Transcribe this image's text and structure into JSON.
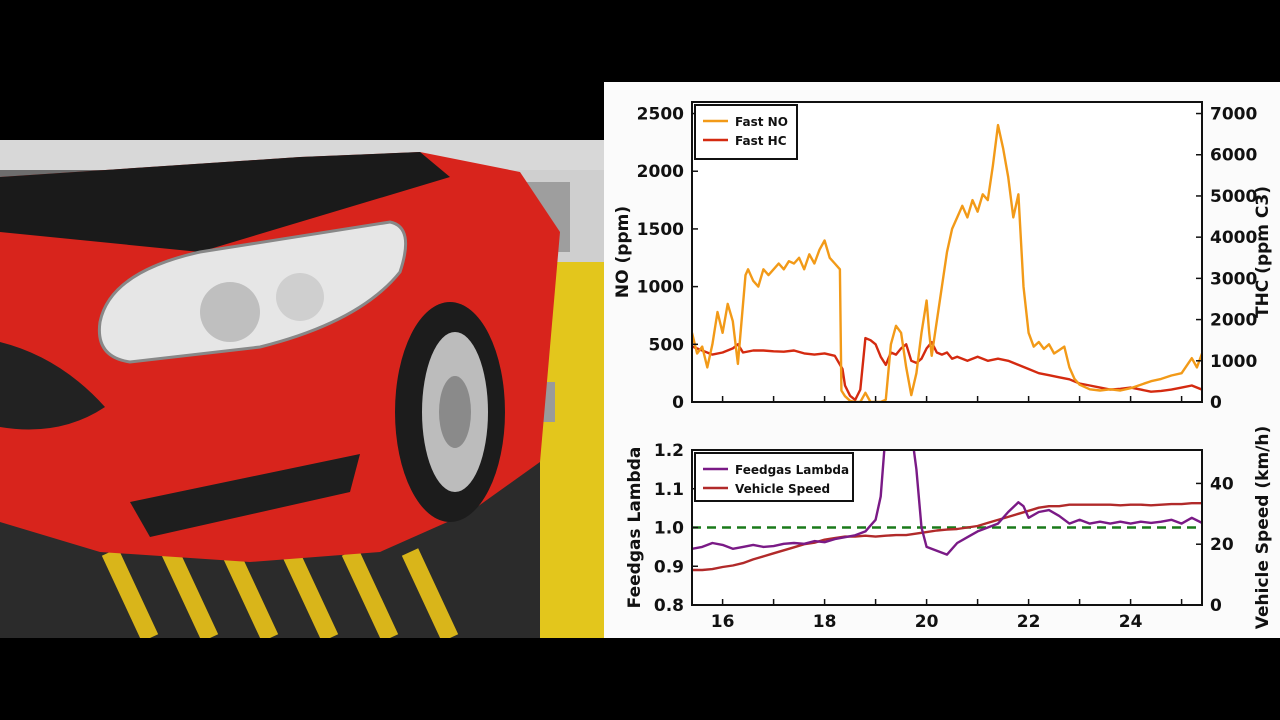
{
  "chart_data": [
    {
      "type": "line",
      "x_range": [
        15.4,
        25.4
      ],
      "y_left": {
        "label": "NO (ppm)",
        "range": [
          0,
          2600
        ],
        "ticks": [
          0,
          500,
          1000,
          1500,
          2000,
          2500
        ]
      },
      "y_right": {
        "label": "THC (ppm C3)",
        "range": [
          0,
          7280
        ],
        "ticks": [
          0,
          1000,
          2000,
          3000,
          4000,
          5000,
          6000,
          7000
        ]
      },
      "legend": {
        "placement": "top-left",
        "entries": [
          "Fast NO",
          "Fast HC"
        ]
      },
      "series": [
        {
          "name": "Fast NO",
          "axis": "left",
          "color": "#f29a18",
          "points": [
            [
              15.4,
              600
            ],
            [
              15.5,
              420
            ],
            [
              15.6,
              480
            ],
            [
              15.7,
              300
            ],
            [
              15.8,
              500
            ],
            [
              15.9,
              780
            ],
            [
              16.0,
              600
            ],
            [
              16.1,
              850
            ],
            [
              16.2,
              700
            ],
            [
              16.3,
              330
            ],
            [
              16.45,
              1100
            ],
            [
              16.5,
              1150
            ],
            [
              16.6,
              1050
            ],
            [
              16.7,
              1000
            ],
            [
              16.8,
              1150
            ],
            [
              16.9,
              1100
            ],
            [
              17.0,
              1150
            ],
            [
              17.1,
              1200
            ],
            [
              17.2,
              1150
            ],
            [
              17.3,
              1220
            ],
            [
              17.4,
              1200
            ],
            [
              17.5,
              1250
            ],
            [
              17.6,
              1150
            ],
            [
              17.7,
              1280
            ],
            [
              17.8,
              1200
            ],
            [
              17.9,
              1320
            ],
            [
              18.0,
              1400
            ],
            [
              18.1,
              1250
            ],
            [
              18.2,
              1200
            ],
            [
              18.3,
              1150
            ],
            [
              18.33,
              100
            ],
            [
              18.4,
              50
            ],
            [
              18.5,
              10
            ],
            [
              18.6,
              0
            ],
            [
              18.7,
              0
            ],
            [
              18.8,
              80
            ],
            [
              18.9,
              0
            ],
            [
              19.0,
              0
            ],
            [
              19.1,
              0
            ],
            [
              19.2,
              20
            ],
            [
              19.3,
              500
            ],
            [
              19.4,
              660
            ],
            [
              19.5,
              600
            ],
            [
              19.6,
              300
            ],
            [
              19.7,
              60
            ],
            [
              19.8,
              250
            ],
            [
              19.9,
              600
            ],
            [
              20.0,
              880
            ],
            [
              20.05,
              600
            ],
            [
              20.1,
              400
            ],
            [
              20.2,
              700
            ],
            [
              20.3,
              1000
            ],
            [
              20.4,
              1300
            ],
            [
              20.5,
              1500
            ],
            [
              20.6,
              1600
            ],
            [
              20.7,
              1700
            ],
            [
              20.8,
              1600
            ],
            [
              20.9,
              1750
            ],
            [
              21.0,
              1650
            ],
            [
              21.1,
              1800
            ],
            [
              21.2,
              1750
            ],
            [
              21.3,
              2050
            ],
            [
              21.4,
              2400
            ],
            [
              21.5,
              2200
            ],
            [
              21.6,
              1950
            ],
            [
              21.7,
              1600
            ],
            [
              21.8,
              1800
            ],
            [
              21.9,
              1000
            ],
            [
              22.0,
              600
            ],
            [
              22.1,
              480
            ],
            [
              22.2,
              520
            ],
            [
              22.3,
              460
            ],
            [
              22.4,
              500
            ],
            [
              22.5,
              420
            ],
            [
              22.6,
              450
            ],
            [
              22.7,
              480
            ],
            [
              22.8,
              300
            ],
            [
              22.9,
              200
            ],
            [
              23.0,
              150
            ],
            [
              23.2,
              110
            ],
            [
              23.4,
              100
            ],
            [
              23.6,
              110
            ],
            [
              23.8,
              100
            ],
            [
              24.0,
              120
            ],
            [
              24.2,
              150
            ],
            [
              24.4,
              180
            ],
            [
              24.6,
              200
            ],
            [
              24.8,
              230
            ],
            [
              25.0,
              250
            ],
            [
              25.2,
              380
            ],
            [
              25.3,
              300
            ],
            [
              25.4,
              420
            ]
          ]
        },
        {
          "name": "Fast HC",
          "axis": "right",
          "color": "#d42a10",
          "points": [
            [
              15.4,
              1350
            ],
            [
              15.6,
              1250
            ],
            [
              15.8,
              1150
            ],
            [
              16.0,
              1200
            ],
            [
              16.2,
              1300
            ],
            [
              16.3,
              1400
            ],
            [
              16.4,
              1200
            ],
            [
              16.6,
              1250
            ],
            [
              16.8,
              1250
            ],
            [
              17.0,
              1230
            ],
            [
              17.2,
              1220
            ],
            [
              17.4,
              1250
            ],
            [
              17.6,
              1180
            ],
            [
              17.8,
              1150
            ],
            [
              18.0,
              1180
            ],
            [
              18.2,
              1120
            ],
            [
              18.35,
              800
            ],
            [
              18.4,
              400
            ],
            [
              18.5,
              150
            ],
            [
              18.6,
              50
            ],
            [
              18.7,
              300
            ],
            [
              18.8,
              1550
            ],
            [
              18.9,
              1500
            ],
            [
              19.0,
              1400
            ],
            [
              19.1,
              1100
            ],
            [
              19.2,
              900
            ],
            [
              19.3,
              1200
            ],
            [
              19.4,
              1150
            ],
            [
              19.5,
              1300
            ],
            [
              19.6,
              1400
            ],
            [
              19.7,
              1000
            ],
            [
              19.8,
              950
            ],
            [
              19.9,
              1050
            ],
            [
              20.0,
              1300
            ],
            [
              20.1,
              1450
            ],
            [
              20.2,
              1200
            ],
            [
              20.3,
              1150
            ],
            [
              20.4,
              1200
            ],
            [
              20.5,
              1050
            ],
            [
              20.6,
              1100
            ],
            [
              20.8,
              1000
            ],
            [
              21.0,
              1100
            ],
            [
              21.2,
              1000
            ],
            [
              21.4,
              1050
            ],
            [
              21.6,
              1000
            ],
            [
              21.8,
              900
            ],
            [
              22.0,
              800
            ],
            [
              22.2,
              700
            ],
            [
              22.4,
              650
            ],
            [
              22.6,
              600
            ],
            [
              22.8,
              550
            ],
            [
              23.0,
              450
            ],
            [
              23.2,
              400
            ],
            [
              23.4,
              350
            ],
            [
              23.6,
              300
            ],
            [
              23.8,
              320
            ],
            [
              24.0,
              350
            ],
            [
              24.2,
              300
            ],
            [
              24.4,
              250
            ],
            [
              24.6,
              270
            ],
            [
              24.8,
              300
            ],
            [
              25.0,
              350
            ],
            [
              25.2,
              400
            ],
            [
              25.4,
              300
            ]
          ]
        }
      ]
    },
    {
      "type": "line",
      "x_range": [
        15.4,
        25.4
      ],
      "x_ticks": [
        16,
        18,
        20,
        22,
        24
      ],
      "y_left": {
        "label": "Feedgas Lambda",
        "range": [
          0.8,
          1.2
        ],
        "ticks": [
          0.8,
          0.9,
          1.0,
          1.1,
          1.2
        ]
      },
      "y_right": {
        "label": "Vehicle Speed (km/h)",
        "range": [
          0,
          51
        ],
        "ticks": [
          0,
          20,
          40
        ]
      },
      "legend": {
        "placement": "top-left",
        "entries": [
          "Feedgas Lambda",
          "Vehicle Speed"
        ]
      },
      "reference_line": {
        "y": 1.0,
        "color": "#1a7a1a",
        "style": "dashed"
      },
      "series": [
        {
          "name": "Feedgas Lambda",
          "axis": "left",
          "color": "#7a1a86",
          "points": [
            [
              15.4,
              0.945
            ],
            [
              15.6,
              0.95
            ],
            [
              15.8,
              0.96
            ],
            [
              16.0,
              0.955
            ],
            [
              16.2,
              0.945
            ],
            [
              16.4,
              0.95
            ],
            [
              16.6,
              0.955
            ],
            [
              16.8,
              0.95
            ],
            [
              17.0,
              0.952
            ],
            [
              17.2,
              0.958
            ],
            [
              17.4,
              0.96
            ],
            [
              17.6,
              0.958
            ],
            [
              17.8,
              0.965
            ],
            [
              18.0,
              0.962
            ],
            [
              18.2,
              0.97
            ],
            [
              18.4,
              0.975
            ],
            [
              18.6,
              0.98
            ],
            [
              18.8,
              0.99
            ],
            [
              18.9,
              1.005
            ],
            [
              19.0,
              1.02
            ],
            [
              19.1,
              1.08
            ],
            [
              19.2,
              1.25
            ],
            [
              19.4,
              1.25
            ],
            [
              19.7,
              1.25
            ],
            [
              19.8,
              1.15
            ],
            [
              19.9,
              1.0
            ],
            [
              20.0,
              0.95
            ],
            [
              20.2,
              0.94
            ],
            [
              20.4,
              0.93
            ],
            [
              20.6,
              0.96
            ],
            [
              20.8,
              0.975
            ],
            [
              21.0,
              0.99
            ],
            [
              21.2,
              1.0
            ],
            [
              21.4,
              1.01
            ],
            [
              21.6,
              1.04
            ],
            [
              21.8,
              1.065
            ],
            [
              21.9,
              1.055
            ],
            [
              22.0,
              1.025
            ],
            [
              22.2,
              1.04
            ],
            [
              22.4,
              1.045
            ],
            [
              22.6,
              1.03
            ],
            [
              22.8,
              1.01
            ],
            [
              23.0,
              1.02
            ],
            [
              23.2,
              1.01
            ],
            [
              23.4,
              1.015
            ],
            [
              23.6,
              1.01
            ],
            [
              23.8,
              1.015
            ],
            [
              24.0,
              1.01
            ],
            [
              24.2,
              1.015
            ],
            [
              24.4,
              1.012
            ],
            [
              24.6,
              1.015
            ],
            [
              24.8,
              1.02
            ],
            [
              25.0,
              1.01
            ],
            [
              25.2,
              1.025
            ],
            [
              25.4,
              1.012
            ]
          ]
        },
        {
          "name": "Vehicle Speed",
          "axis": "right",
          "color": "#b12a2a",
          "points": [
            [
              15.4,
              11.5
            ],
            [
              15.6,
              11.5
            ],
            [
              15.8,
              11.8
            ],
            [
              16.0,
              12.5
            ],
            [
              16.2,
              13.0
            ],
            [
              16.4,
              13.8
            ],
            [
              16.6,
              15.0
            ],
            [
              16.8,
              16.0
            ],
            [
              17.0,
              17.0
            ],
            [
              17.2,
              18.0
            ],
            [
              17.4,
              19.0
            ],
            [
              17.6,
              20.0
            ],
            [
              17.8,
              20.5
            ],
            [
              18.0,
              21.5
            ],
            [
              18.2,
              22.0
            ],
            [
              18.4,
              22.5
            ],
            [
              18.6,
              22.5
            ],
            [
              18.8,
              22.8
            ],
            [
              19.0,
              22.5
            ],
            [
              19.2,
              22.8
            ],
            [
              19.4,
              23.0
            ],
            [
              19.6,
              23.0
            ],
            [
              19.8,
              23.5
            ],
            [
              20.0,
              24.0
            ],
            [
              20.2,
              24.5
            ],
            [
              20.4,
              24.8
            ],
            [
              20.6,
              25.0
            ],
            [
              20.8,
              25.5
            ],
            [
              21.0,
              26.0
            ],
            [
              21.2,
              27.0
            ],
            [
              21.4,
              28.0
            ],
            [
              21.6,
              29.0
            ],
            [
              21.8,
              30.0
            ],
            [
              22.0,
              31.0
            ],
            [
              22.2,
              32.0
            ],
            [
              22.4,
              32.5
            ],
            [
              22.6,
              32.5
            ],
            [
              22.8,
              33.0
            ],
            [
              23.0,
              33.0
            ],
            [
              23.2,
              33.0
            ],
            [
              23.4,
              33.0
            ],
            [
              23.6,
              33.0
            ],
            [
              23.8,
              32.8
            ],
            [
              24.0,
              33.0
            ],
            [
              24.2,
              33.0
            ],
            [
              24.4,
              32.8
            ],
            [
              24.6,
              33.0
            ],
            [
              24.8,
              33.2
            ],
            [
              25.0,
              33.2
            ],
            [
              25.2,
              33.5
            ],
            [
              25.4,
              33.5
            ]
          ]
        }
      ]
    }
  ]
}
